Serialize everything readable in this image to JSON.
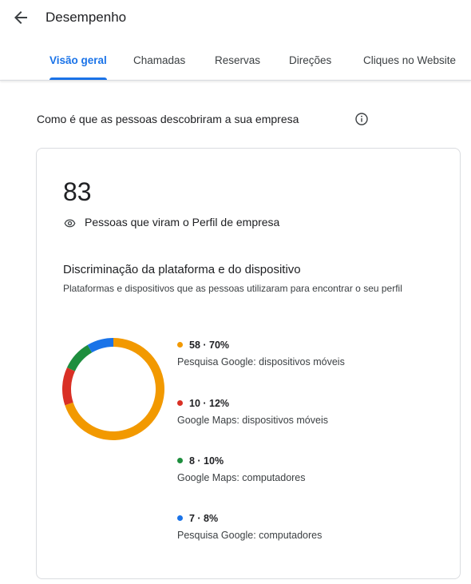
{
  "header": {
    "back_icon": "arrow-left-icon",
    "title": "Desempenho"
  },
  "tabs": [
    {
      "label": "Visão geral",
      "active": true
    },
    {
      "label": "Chamadas",
      "active": false
    },
    {
      "label": "Reservas",
      "active": false
    },
    {
      "label": "Direções",
      "active": false
    },
    {
      "label": "Cliques no Website",
      "active": false
    }
  ],
  "section": {
    "title": "Como é que as pessoas descobriram a sua empresa",
    "info_icon": "info-icon"
  },
  "card": {
    "total": "83",
    "total_icon": "eye-icon",
    "total_label": "Pessoas que viram o Perfil de empresa",
    "breakdown_title": "Discriminação da plataforma e do dispositivo",
    "breakdown_subtitle": "Plataformas e dispositivos que as pessoas utilizaram para encontrar o seu perfil"
  },
  "chart_data": {
    "type": "pie",
    "style": "donut",
    "series": [
      {
        "name": "Pesquisa Google: dispositivos móveis",
        "value": 58,
        "percent": 70,
        "display": "58 · 70%",
        "color": "#f29900"
      },
      {
        "name": "Google Maps: dispositivos móveis",
        "value": 10,
        "percent": 12,
        "display": "10 · 12%",
        "color": "#d93025"
      },
      {
        "name": "Google Maps: computadores",
        "value": 8,
        "percent": 10,
        "display": "8 · 10%",
        "color": "#1e8e3e"
      },
      {
        "name": "Pesquisa Google: computadores",
        "value": 7,
        "percent": 8,
        "display": "7 · 8%",
        "color": "#1a73e8"
      }
    ]
  },
  "colors": {
    "accent": "#1a73e8",
    "text": "#202124",
    "secondary_text": "#3c4043",
    "divider": "#dadce0"
  }
}
